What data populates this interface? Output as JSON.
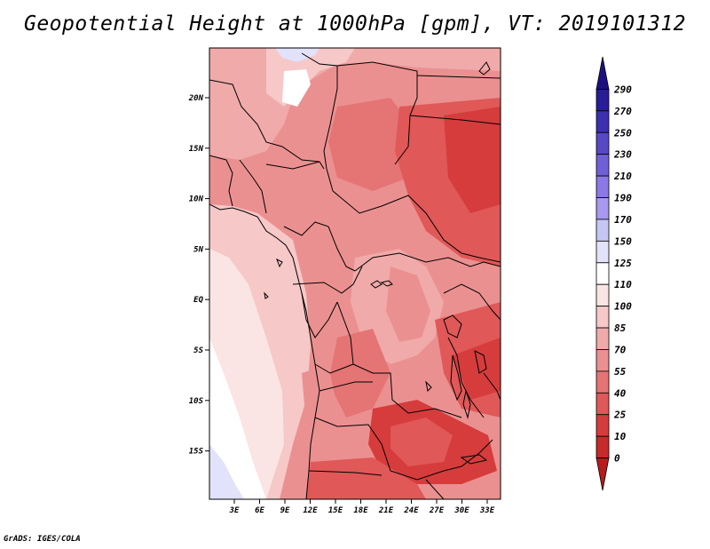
{
  "title": "Geopotential Height at 1000hPa [gpm], VT: 2019101312",
  "credit": "GrADS: IGES/COLA",
  "map": {
    "lat_labels": [
      "20N",
      "15N",
      "10N",
      "5N",
      "EQ",
      "5S",
      "10S",
      "15S"
    ],
    "lon_labels": [
      "3E",
      "6E",
      "9E",
      "12E",
      "15E",
      "18E",
      "21E",
      "24E",
      "27E",
      "30E",
      "33E"
    ]
  },
  "colorbar": {
    "levels": [
      "0",
      "10",
      "25",
      "40",
      "55",
      "70",
      "85",
      "100",
      "110",
      "125",
      "150",
      "170",
      "190",
      "210",
      "230",
      "250",
      "270",
      "290"
    ],
    "colors": [
      "#b51c1c",
      "#c62a2a",
      "#d63c3c",
      "#e05858",
      "#e57474",
      "#eb9090",
      "#f0aaaa",
      "#f6c8c8",
      "#fbe4e4",
      "#ffffff",
      "#e2e2fa",
      "#c6c6f4",
      "#a898ee",
      "#8c78e6",
      "#7060d8",
      "#5848c4",
      "#3c30b0",
      "#281c98",
      "#1c1080"
    ]
  }
}
